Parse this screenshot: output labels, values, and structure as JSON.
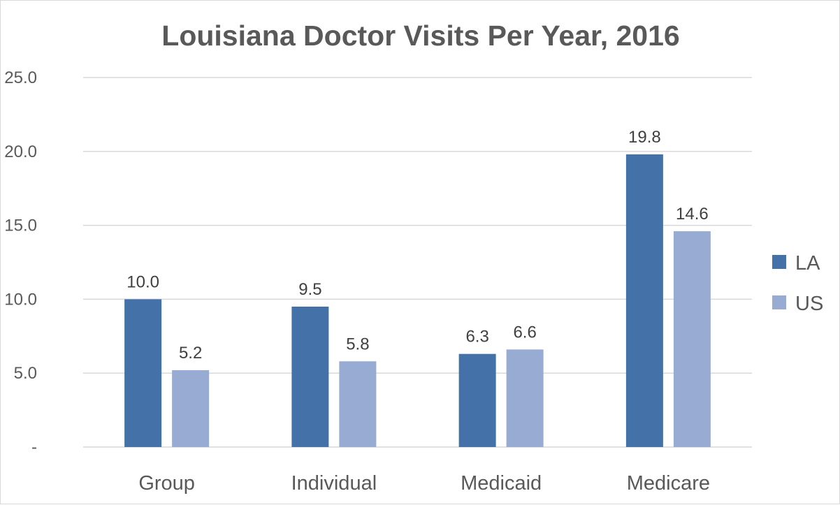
{
  "chart_data": {
    "type": "bar",
    "title": "Louisiana Doctor Visits Per Year, 2016",
    "categories": [
      "Group",
      "Individual",
      "Medicaid",
      "Medicare"
    ],
    "series": [
      {
        "name": "LA",
        "values": [
          10.0,
          9.5,
          6.3,
          19.8
        ],
        "color": "#4472a8"
      },
      {
        "name": "US",
        "values": [
          5.2,
          5.8,
          6.6,
          14.6
        ],
        "color": "#98abd3"
      }
    ],
    "data_labels": [
      [
        "10.0",
        "9.5",
        "6.3",
        "19.8"
      ],
      [
        "5.2",
        "5.8",
        "6.6",
        "14.6"
      ]
    ],
    "y_ticks": [
      {
        "value": 0,
        "label": "-"
      },
      {
        "value": 5,
        "label": "5.0"
      },
      {
        "value": 10,
        "label": "10.0"
      },
      {
        "value": 15,
        "label": "15.0"
      },
      {
        "value": 20,
        "label": "20.0"
      },
      {
        "value": 25,
        "label": "25.0"
      }
    ],
    "ylim": [
      0,
      25
    ],
    "grid": true,
    "legend_position": "right",
    "xlabel": "",
    "ylabel": ""
  }
}
